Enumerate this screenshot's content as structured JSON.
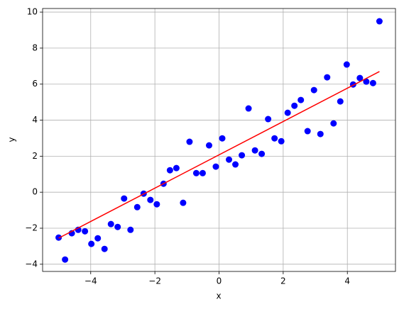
{
  "chart_data": {
    "type": "scatter",
    "xlabel": "x",
    "ylabel": "y",
    "xlim": [
      -5.5,
      5.5
    ],
    "ylim": [
      -4.4,
      10.2
    ],
    "grid": true,
    "xticks": [
      {
        "value": -4,
        "label": "−4"
      },
      {
        "value": -2,
        "label": "−2"
      },
      0,
      2,
      4
    ],
    "yticks": [
      {
        "value": -4,
        "label": "−4"
      },
      {
        "value": -2,
        "label": "−2"
      },
      0,
      2,
      4,
      6,
      8,
      10
    ],
    "series": [
      {
        "style": "scatter",
        "color": "#0000ff",
        "x": [
          -5,
          -4.8,
          -4.59,
          -4.39,
          -4.18,
          -3.98,
          -3.78,
          -3.57,
          -3.37,
          -3.16,
          -2.96,
          -2.76,
          -2.55,
          -2.35,
          -2.14,
          -1.94,
          -1.73,
          -1.53,
          -1.33,
          -1.12,
          -0.92,
          -0.71,
          -0.51,
          -0.31,
          -0.1,
          0.1,
          0.31,
          0.51,
          0.71,
          0.92,
          1.12,
          1.33,
          1.53,
          1.73,
          1.94,
          2.14,
          2.35,
          2.55,
          2.76,
          2.96,
          3.16,
          3.37,
          3.57,
          3.78,
          3.98,
          4.18,
          4.39,
          4.59,
          4.8,
          5
        ],
        "values": [
          -2.52,
          -3.74,
          -2.28,
          -2.09,
          -2.17,
          -2.87,
          -2.56,
          -3.15,
          -1.77,
          -1.93,
          -0.35,
          -2.09,
          -0.83,
          -0.08,
          -0.43,
          -0.67,
          0.47,
          1.22,
          1.34,
          -0.59,
          2.8,
          1.06,
          1.06,
          2.6,
          1.42,
          2.99,
          1.81,
          1.54,
          2.05,
          4.65,
          2.32,
          2.13,
          4.06,
          2.99,
          2.83,
          4.41,
          4.8,
          5.12,
          3.39,
          5.67,
          3.23,
          6.38,
          3.82,
          5.04,
          7.09,
          5.98,
          6.34,
          6.14,
          6.06,
          9.49
        ]
      },
      {
        "style": "line",
        "color": "#ff0000",
        "x": [
          -5,
          5
        ],
        "values": [
          -2.55,
          6.7
        ]
      }
    ]
  }
}
